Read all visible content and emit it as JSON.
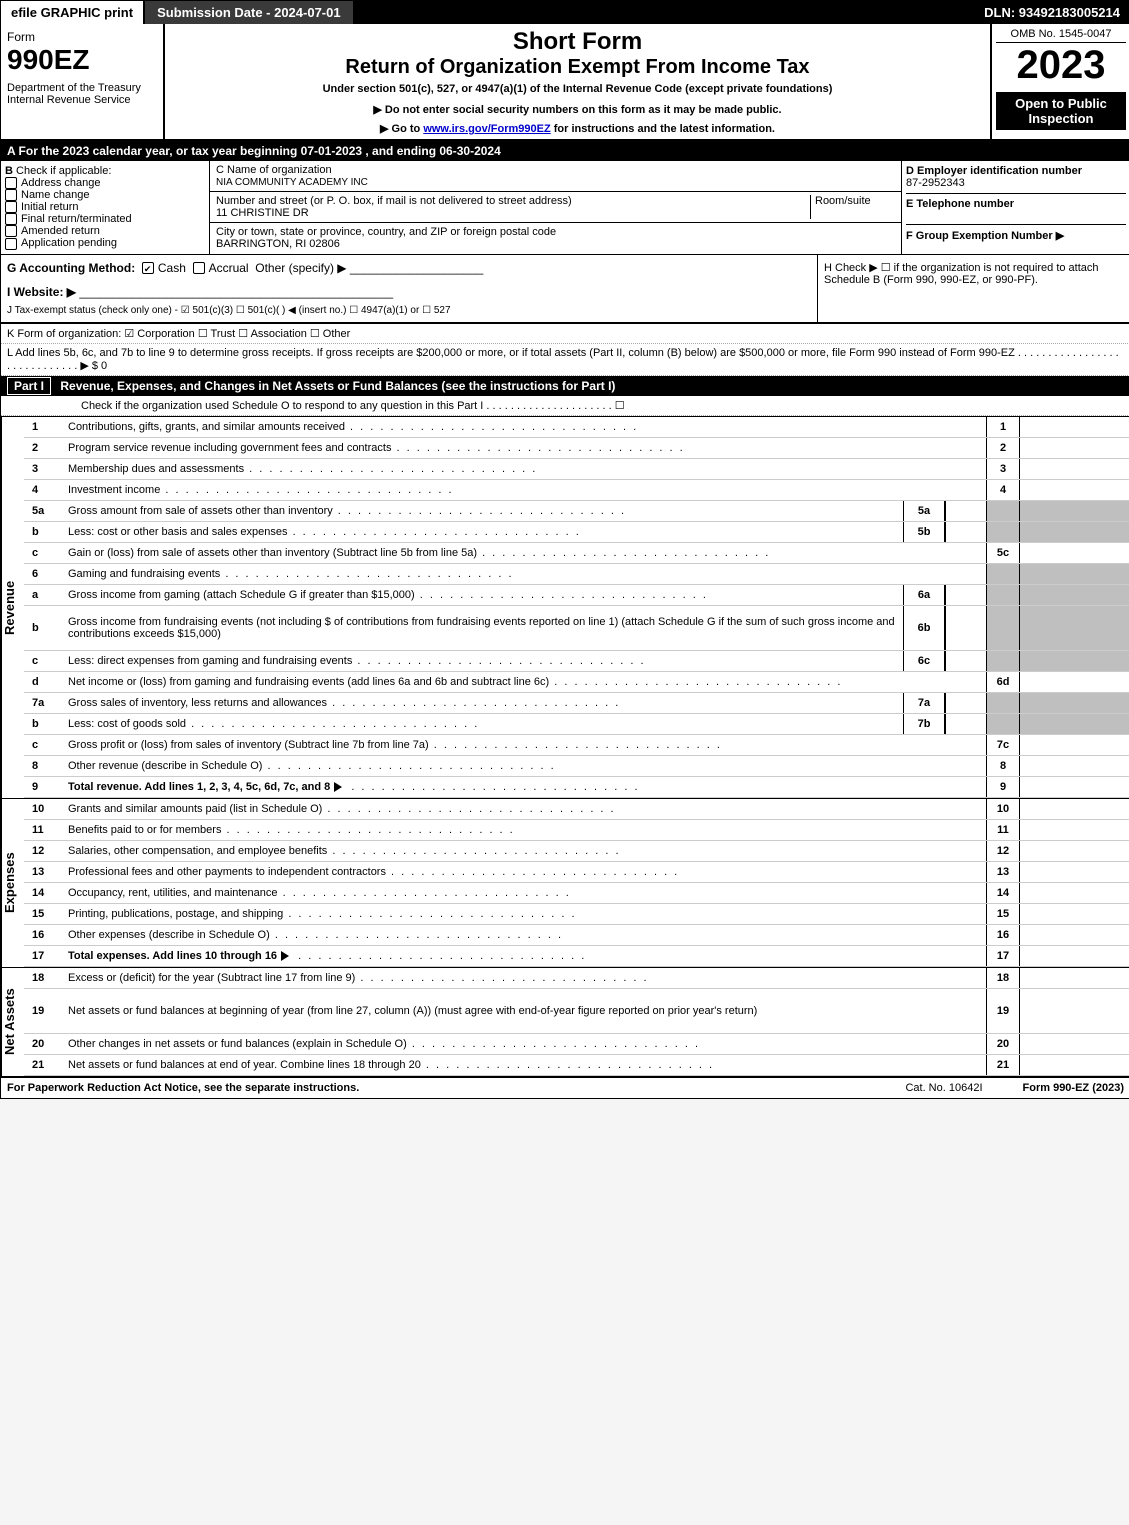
{
  "topbar": {
    "efile": "efile GRAPHIC print",
    "sub": "Submission Date - 2024-07-01",
    "dln": "DLN: 93492183005214"
  },
  "hdr": {
    "form": "Form",
    "no": "990EZ",
    "dept": "Department of the Treasury",
    "irs": "Internal Revenue Service",
    "title1": "Short Form",
    "title2": "Return of Organization Exempt From Income Tax",
    "sub": "Under section 501(c), 527, or 4947(a)(1) of the Internal Revenue Code (except private foundations)",
    "warn": "▶ Do not enter social security numbers on this form as it may be made public.",
    "goto_pre": "▶ Go to ",
    "goto_link": "www.irs.gov/Form990EZ",
    "goto_post": " for instructions and the latest information.",
    "omb": "OMB No. 1545-0047",
    "year": "2023",
    "open": "Open to Public Inspection"
  },
  "A": "A  For the 2023 calendar year, or tax year beginning 07-01-2023 , and ending 06-30-2024",
  "B": {
    "hdr": "B",
    "lbl": "Check if applicable:",
    "opts": [
      "Address change",
      "Name change",
      "Initial return",
      "Final return/terminated",
      "Amended return",
      "Application pending"
    ]
  },
  "C": {
    "name_lbl": "C Name of organization",
    "name": "NIA COMMUNITY ACADEMY INC",
    "addr_lbl": "Number and street (or P. O. box, if mail is not delivered to street address)",
    "room_lbl": "Room/suite",
    "addr": "11 CHRISTINE DR",
    "city_lbl": "City or town, state or province, country, and ZIP or foreign postal code",
    "city": "BARRINGTON, RI  02806"
  },
  "D": {
    "lbl": "D Employer identification number",
    "val": "87-2952343"
  },
  "E": {
    "lbl": "E Telephone number"
  },
  "F": {
    "lbl": "F Group Exemption Number  ▶"
  },
  "G": {
    "lbl": "G Accounting Method:",
    "cash": "Cash",
    "accr": "Accrual",
    "oth": "Other (specify) ▶"
  },
  "H": {
    "txt": "H   Check ▶  ☐  if the organization is not required to attach Schedule B (Form 990, 990-EZ, or 990-PF)."
  },
  "I": "I Website: ▶",
  "J": "J Tax-exempt status (check only one) - ☑ 501(c)(3) ☐ 501(c)(  ) ◀ (insert no.) ☐ 4947(a)(1) or ☐ 527",
  "K": "K Form of organization:  ☑ Corporation  ☐ Trust  ☐ Association  ☐ Other",
  "L": "L Add lines 5b, 6c, and 7b to line 9 to determine gross receipts. If gross receipts are $200,000 or more, or if total assets (Part II, column (B) below) are $500,000 or more, file Form 990 instead of Form 990-EZ  .  .  .  .  .  .  .  .  .  .  .  .  .  .  .  .  .  .  .  .  .  .  .  .  .  .  .  .  .  ▶ $ 0",
  "part1": {
    "lbl": "Part I",
    "title": "Revenue, Expenses, and Changes in Net Assets or Fund Balances (see the instructions for Part I)",
    "chk": "Check if the organization used Schedule O to respond to any question in this Part I .  .  .  .  .  .  .  .  .  .  .  .  .  .  .  .  .  .  .  .  .  ☐"
  },
  "sides": {
    "rev": "Revenue",
    "exp": "Expenses",
    "na": "Net Assets"
  },
  "rev": [
    {
      "n": "1",
      "d": "Contributions, gifts, grants, and similar amounts received",
      "r": "1"
    },
    {
      "n": "2",
      "d": "Program service revenue including government fees and contracts",
      "r": "2"
    },
    {
      "n": "3",
      "d": "Membership dues and assessments",
      "r": "3"
    },
    {
      "n": "4",
      "d": "Investment income",
      "r": "4"
    },
    {
      "n": "5a",
      "d": "Gross amount from sale of assets other than inventory",
      "m": "5a",
      "sh": true
    },
    {
      "n": "b",
      "d": "Less: cost or other basis and sales expenses",
      "m": "5b",
      "sh": true
    },
    {
      "n": "c",
      "d": "Gain or (loss) from sale of assets other than inventory (Subtract line 5b from line 5a)",
      "r": "5c"
    },
    {
      "n": "6",
      "d": "Gaming and fundraising events",
      "sh": true
    },
    {
      "n": "a",
      "d": "Gross income from gaming (attach Schedule G if greater than $15,000)",
      "m": "6a",
      "sh": true
    },
    {
      "n": "b",
      "d": "Gross income from fundraising events (not including $              of contributions from fundraising events reported on line 1) (attach Schedule G if the sum of such gross income and contributions exceeds $15,000)",
      "m": "6b",
      "sh": true,
      "tall": true
    },
    {
      "n": "c",
      "d": "Less: direct expenses from gaming and fundraising events",
      "m": "6c",
      "sh": true
    },
    {
      "n": "d",
      "d": "Net income or (loss) from gaming and fundraising events (add lines 6a and 6b and subtract line 6c)",
      "r": "6d"
    },
    {
      "n": "7a",
      "d": "Gross sales of inventory, less returns and allowances",
      "m": "7a",
      "sh": true
    },
    {
      "n": "b",
      "d": "Less: cost of goods sold",
      "m": "7b",
      "sh": true
    },
    {
      "n": "c",
      "d": "Gross profit or (loss) from sales of inventory (Subtract line 7b from line 7a)",
      "r": "7c"
    },
    {
      "n": "8",
      "d": "Other revenue (describe in Schedule O)",
      "r": "8"
    },
    {
      "n": "9",
      "d": "Total revenue. Add lines 1, 2, 3, 4, 5c, 6d, 7c, and 8",
      "r": "9",
      "bold": true,
      "arrow": true
    }
  ],
  "exp": [
    {
      "n": "10",
      "d": "Grants and similar amounts paid (list in Schedule O)",
      "r": "10"
    },
    {
      "n": "11",
      "d": "Benefits paid to or for members",
      "r": "11"
    },
    {
      "n": "12",
      "d": "Salaries, other compensation, and employee benefits",
      "r": "12"
    },
    {
      "n": "13",
      "d": "Professional fees and other payments to independent contractors",
      "r": "13"
    },
    {
      "n": "14",
      "d": "Occupancy, rent, utilities, and maintenance",
      "r": "14"
    },
    {
      "n": "15",
      "d": "Printing, publications, postage, and shipping",
      "r": "15"
    },
    {
      "n": "16",
      "d": "Other expenses (describe in Schedule O)",
      "r": "16"
    },
    {
      "n": "17",
      "d": "Total expenses. Add lines 10 through 16",
      "r": "17",
      "bold": true,
      "arrow": true
    }
  ],
  "na": [
    {
      "n": "18",
      "d": "Excess or (deficit) for the year (Subtract line 17 from line 9)",
      "r": "18"
    },
    {
      "n": "19",
      "d": "Net assets or fund balances at beginning of year (from line 27, column (A)) (must agree with end-of-year figure reported on prior year's return)",
      "r": "19",
      "tall": true
    },
    {
      "n": "20",
      "d": "Other changes in net assets or fund balances (explain in Schedule O)",
      "r": "20"
    },
    {
      "n": "21",
      "d": "Net assets or fund balances at end of year. Combine lines 18 through 20",
      "r": "21"
    }
  ],
  "ftr": {
    "pra": "For Paperwork Reduction Act Notice, see the separate instructions.",
    "cat": "Cat. No. 10642I",
    "form": "Form 990-EZ (2023)"
  }
}
